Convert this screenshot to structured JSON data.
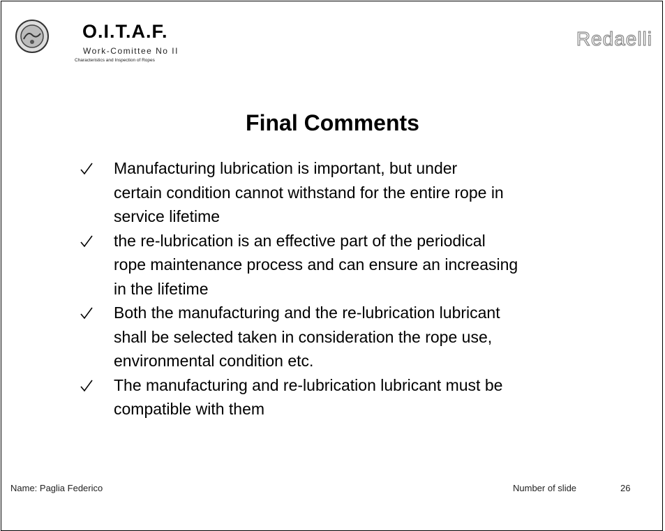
{
  "header": {
    "organization": "O.I.T.A.F.",
    "committee": "Work-Comittee No II",
    "subtitle": "Characteristics and Inspection of Ropes",
    "brand": "Redaelli"
  },
  "title": "Final Comments",
  "bullets": [
    {
      "lines": [
        "Manufacturing lubrication is important, but under",
        "certain condition cannot withstand for the entire rope in",
        "service lifetime"
      ]
    },
    {
      "lines": [
        "the re-lubrication is an effective part of the periodical",
        "rope maintenance process and can ensure an increasing",
        "in the lifetime"
      ]
    },
    {
      "lines": [
        "Both the manufacturing and the re-lubrication lubricant",
        "shall be selected taken in consideration the rope use,",
        "environmental condition etc."
      ]
    },
    {
      "lines": [
        "The manufacturing and re-lubrication lubricant must be",
        "compatible with them"
      ]
    }
  ],
  "footer": {
    "name": "Name: Paglia Federico",
    "slide_label": "Number of slide",
    "slide_number": "26"
  }
}
